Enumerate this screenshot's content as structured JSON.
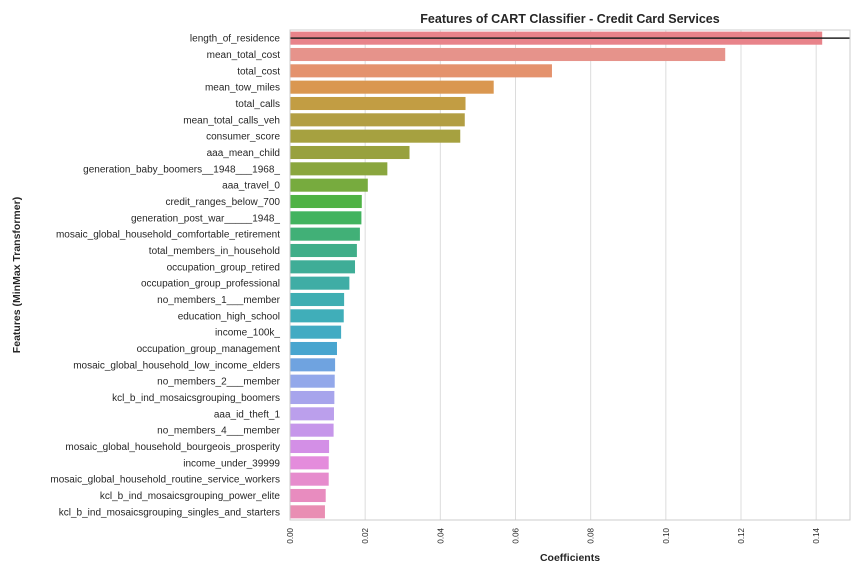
{
  "chart_data": {
    "type": "bar",
    "orientation": "horizontal",
    "title": "Features of CART Classifier - Credit Card Services",
    "xlabel": "Coefficients",
    "ylabel": "Features (MinMax Transformer)",
    "xlim": [
      0,
      0.149
    ],
    "xticks": [
      "0.00",
      "0.02",
      "0.04",
      "0.06",
      "0.08",
      "0.10",
      "0.12",
      "0.14"
    ],
    "grid": true,
    "categories": [
      "length_of_residence",
      "mean_total_cost",
      "total_cost",
      "mean_tow_miles",
      "total_calls",
      "mean_total_calls_veh",
      "consumer_score",
      "aaa_mean_child",
      "generation_baby_boomers__1948___1968_",
      "aaa_travel_0",
      "credit_ranges_below_700",
      "generation_post_war_____1948_",
      "mosaic_global_household_comfortable_retirement",
      "total_members_in_household",
      "occupation_group_retired",
      "occupation_group_professional",
      "no_members_1___member",
      "education_high_school",
      "income_100k_",
      "occupation_group_management",
      "mosaic_global_household_low_income_elders",
      "no_members_2___member",
      "kcl_b_ind_mosaicsgrouping_boomers",
      "aaa_id_theft_1",
      "no_members_4___member",
      "mosaic_global_household_bourgeois_prosperity",
      "income_under_39999",
      "mosaic_global_household_routine_service_workers",
      "kcl_b_ind_mosaicsgrouping_power_elite",
      "kcl_b_ind_mosaicsgrouping_singles_and_starters"
    ],
    "values": [
      0.1416,
      0.1158,
      0.0697,
      0.0542,
      0.0467,
      0.0465,
      0.0453,
      0.0318,
      0.0259,
      0.0207,
      0.0191,
      0.019,
      0.0186,
      0.0178,
      0.0173,
      0.0158,
      0.0144,
      0.0143,
      0.0136,
      0.0125,
      0.012,
      0.0119,
      0.0118,
      0.0117,
      0.0116,
      0.0104,
      0.0103,
      0.0103,
      0.0095,
      0.0093
    ],
    "colors": [
      "#e8838a",
      "#e6938b",
      "#e4926d",
      "#da9750",
      "#c29d43",
      "#b29e43",
      "#a6a140",
      "#98a13e",
      "#8aa63e",
      "#77ab3e",
      "#4fb244",
      "#42b35f",
      "#41b077",
      "#40ae89",
      "#3fad97",
      "#3fada5",
      "#3faeb2",
      "#40aeb9",
      "#42abc3",
      "#48a5cf",
      "#6fa3e0",
      "#93a8ea",
      "#a7a4ec",
      "#bb9fec",
      "#c696ea",
      "#d38fe6",
      "#e48cdc",
      "#e68ccd",
      "#e88cbf",
      "#e98eb3"
    ],
    "reference_line": "black horizontal line at length_of_residence row"
  }
}
